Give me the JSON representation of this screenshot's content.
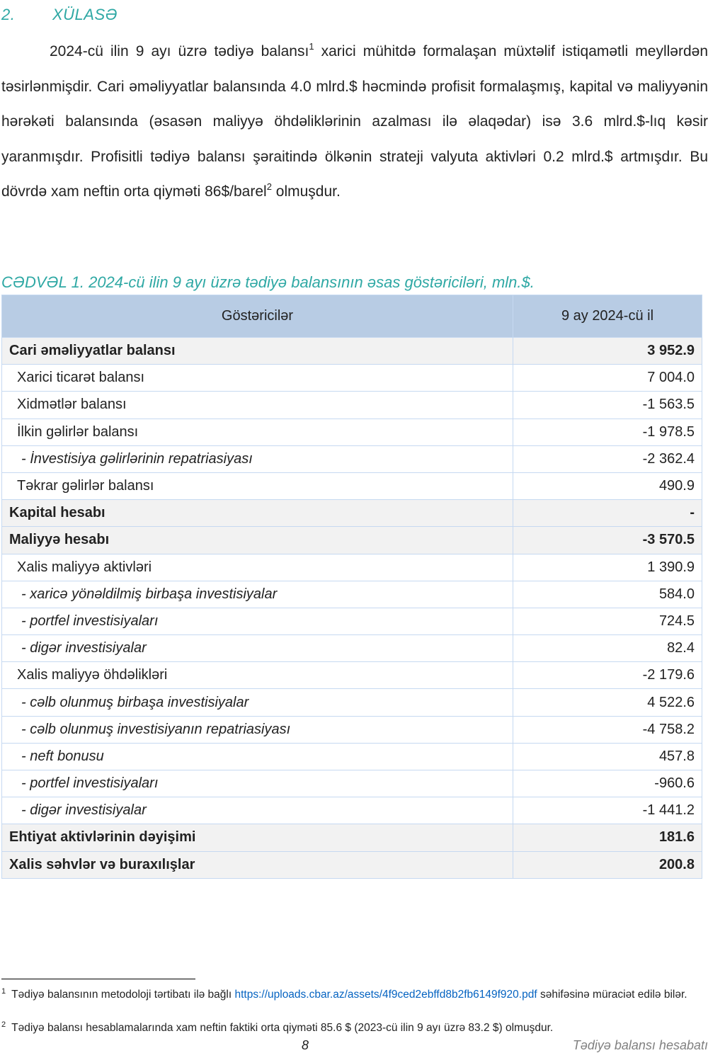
{
  "section": {
    "number": "2.",
    "title": "XÜLASƏ"
  },
  "paragraph": [
    "2024-cü ilin 9 ayı üzrə tədiyə balansı",
    "1",
    " xarici mühitdə formalaşan müxtəlif istiqamətli meyllərdən təsirlənmişdir. Cari əməliyyatlar balansında 4.0 mlrd.$ həcmində profisit formalaşmış, kapital və maliyyənin hərəkəti balansında (əsasən maliyyə öhdəliklərinin azalması ilə əlaqədar) isə 3.6 mlrd.$-lıq kəsir yaranmışdır. Profisitli tədiyə balansı şəraitində ölkənin strateji valyuta aktivləri 0.2 mlrd.$ artmışdır. Bu dövrdə xam neftin orta qiyməti 86$/barel",
    "2",
    " olmuşdur."
  ],
  "table": {
    "caption": "CƏDVƏL 1. 2024-cü ilin 9 ayı üzrə tədiyə balansının əsas göstəriciləri, mln.$.",
    "header": [
      "Göstəricilər",
      "9 ay 2024-cü il"
    ],
    "rows": [
      [
        "Cari əməliyyatlar balansı",
        "3 952.9"
      ],
      [
        "Xarici ticarət balansı",
        "7 004.0"
      ],
      [
        "Xidmətlər balansı",
        "-1 563.5"
      ],
      [
        "İlkin gəlirlər balansı",
        "-1 978.5"
      ],
      [
        "- İnvestisiya gəlirlərinin repatriasiyası",
        "-2 362.4"
      ],
      [
        "Təkrar gəlirlər balansı",
        "490.9"
      ],
      [
        "Kapital hesabı",
        "-"
      ],
      [
        "Maliyyə hesabı",
        "-3 570.5"
      ],
      [
        "Xalis maliyyə aktivləri",
        "1 390.9"
      ],
      [
        "- xaricə yönəldilmiş birbaşa investisiyalar",
        "584.0"
      ],
      [
        "- portfel investisiyaları",
        "724.5"
      ],
      [
        "- digər investisiyalar",
        "82.4"
      ],
      [
        "Xalis maliyyə öhdəlikləri",
        "-2 179.6"
      ],
      [
        "- cəlb olunmuş birbaşa investisiyalar",
        "4 522.6"
      ],
      [
        "- cəlb olunmuş investisiyanın repatriasiyası",
        "-4 758.2"
      ],
      [
        "- neft bonusu",
        "457.8"
      ],
      [
        "- portfel investisiyaları",
        "-960.6"
      ],
      [
        "- digər investisiyalar",
        "-1 441.2"
      ],
      [
        "Ehtiyat aktivlərinin dəyişimi",
        "181.6"
      ],
      [
        "Xalis səhvlər və buraxılışlar",
        "200.8"
      ]
    ]
  },
  "footnotes": [
    {
      "mark": "1",
      "text": "Tədiyə balansının metodoloji tərtibatı ilə bağlı",
      "link": "https://uploads.cbar.az/assets/4f9ced2ebffd8b2fb6149f920.pdf",
      "after": "səhifəsinə müraciət edilə bilər."
    },
    {
      "mark": "2",
      "text": "Tədiyə balansı hesablamalarında xam neftin faktiki orta qiyməti 85.6 $ (2023-cü ilin 9 ayı üzrə 83.2 $) olmuşdur."
    }
  ],
  "footer": {
    "page": "8",
    "title": "Tədiyə balansı hesabatı"
  }
}
